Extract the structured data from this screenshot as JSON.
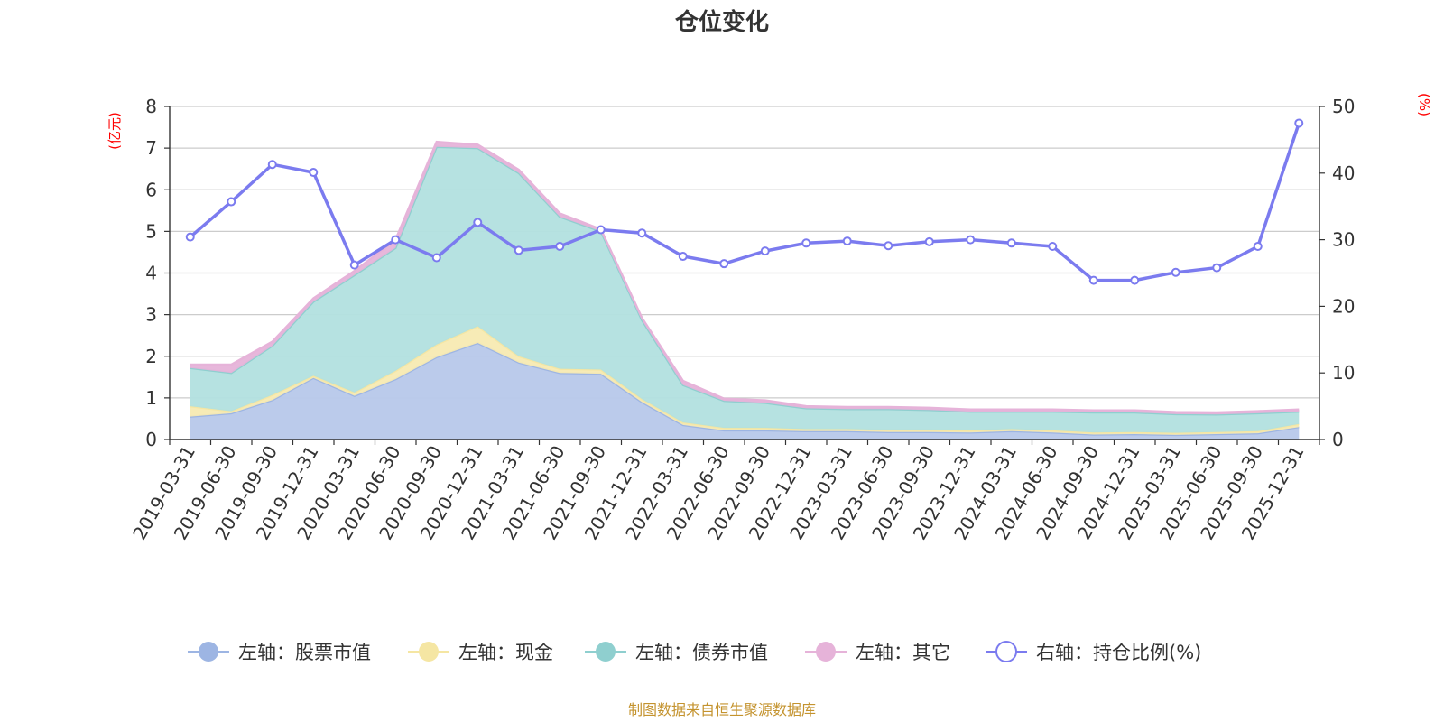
{
  "chart_data": {
    "type": "area",
    "title": "仓位变化",
    "source_note": "制图数据来自恒生聚源数据库",
    "left_axis": {
      "unit": "(亿元)",
      "ylim": [
        0,
        8
      ],
      "ticks": [
        "0",
        "1",
        "2",
        "3",
        "4",
        "5",
        "6",
        "7",
        "8"
      ]
    },
    "right_axis": {
      "unit": "(%)",
      "ylim": [
        0,
        50
      ],
      "ticks": [
        "0",
        "10",
        "20",
        "30",
        "40",
        "50"
      ]
    },
    "categories": [
      "2019-03-31",
      "2019-06-30",
      "2019-09-30",
      "2019-12-31",
      "2020-03-31",
      "2020-06-30",
      "2020-09-30",
      "2020-12-31",
      "2021-03-31",
      "2021-06-30",
      "2021-09-30",
      "2021-12-31",
      "2022-03-31",
      "2022-06-30",
      "2022-09-30",
      "2022-12-31",
      "2023-03-31",
      "2023-06-30",
      "2023-09-30",
      "2023-12-31",
      "2024-03-31",
      "2024-06-30",
      "2024-09-30",
      "2024-12-31",
      "2025-03-31",
      "2025-06-30",
      "2025-09-30",
      "2025-12-31"
    ],
    "series": [
      {
        "name": "左轴：股票市值",
        "axis": "left",
        "stack": true,
        "color": "#9db5e3",
        "fill": "#b7c8ea",
        "values": [
          0.55,
          0.63,
          0.95,
          1.48,
          1.05,
          1.45,
          1.98,
          2.32,
          1.85,
          1.6,
          1.58,
          0.9,
          0.35,
          0.22,
          0.22,
          0.2,
          0.2,
          0.18,
          0.18,
          0.17,
          0.2,
          0.17,
          0.12,
          0.13,
          0.11,
          0.13,
          0.15,
          0.3
        ]
      },
      {
        "name": "左轴：现金",
        "axis": "left",
        "stack": true,
        "color": "#f5e6a3",
        "fill": "#f7eab2",
        "values": [
          0.25,
          0.05,
          0.12,
          0.05,
          0.08,
          0.2,
          0.3,
          0.4,
          0.15,
          0.1,
          0.1,
          0.07,
          0.06,
          0.06,
          0.06,
          0.05,
          0.05,
          0.05,
          0.05,
          0.05,
          0.05,
          0.05,
          0.05,
          0.05,
          0.05,
          0.05,
          0.05,
          0.07
        ]
      },
      {
        "name": "左轴：债券市值",
        "axis": "left",
        "stack": true,
        "color": "#8fcfcf",
        "fill": "#b2e0df",
        "values": [
          0.92,
          0.92,
          1.18,
          1.78,
          2.82,
          2.95,
          4.75,
          4.28,
          4.4,
          3.65,
          3.32,
          1.9,
          0.9,
          0.65,
          0.6,
          0.5,
          0.48,
          0.5,
          0.48,
          0.45,
          0.42,
          0.45,
          0.48,
          0.47,
          0.45,
          0.42,
          0.43,
          0.3
        ]
      },
      {
        "name": "左轴：其它",
        "axis": "left",
        "stack": true,
        "color": "#e6b3d9",
        "fill": "#e6b3d9",
        "values": [
          0.08,
          0.2,
          0.1,
          0.08,
          0.1,
          0.2,
          0.12,
          0.08,
          0.08,
          0.08,
          0.05,
          0.05,
          0.1,
          0.05,
          0.06,
          0.05,
          0.05,
          0.05,
          0.05,
          0.05,
          0.05,
          0.05,
          0.05,
          0.05,
          0.05,
          0.05,
          0.05,
          0.05
        ]
      },
      {
        "name": "右轴：持仓比例(%)",
        "axis": "right",
        "stack": false,
        "color": "#7b7bef",
        "values": [
          30.4,
          35.7,
          41.3,
          40.1,
          26.2,
          30.0,
          27.3,
          32.6,
          28.4,
          29.0,
          31.5,
          31.0,
          27.5,
          26.4,
          28.3,
          29.5,
          29.8,
          29.1,
          29.7,
          30.0,
          29.5,
          29.0,
          23.9,
          23.9,
          25.1,
          25.8,
          29.0,
          47.5
        ]
      }
    ]
  }
}
